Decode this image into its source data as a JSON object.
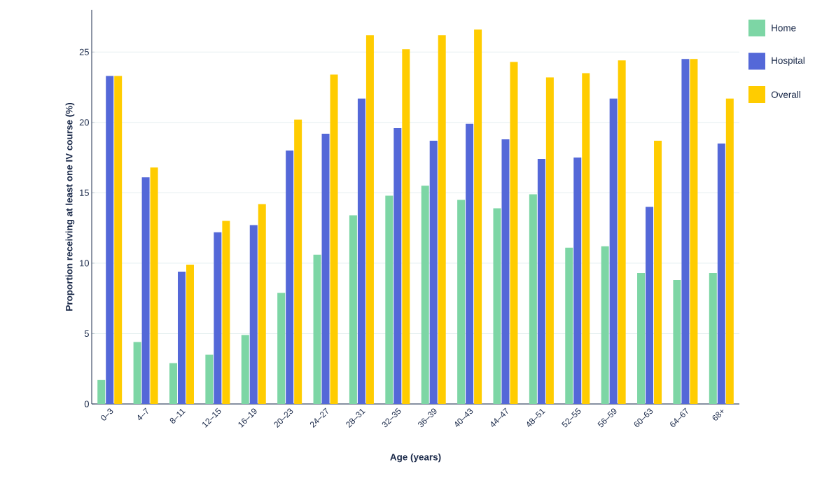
{
  "chart_data": {
    "type": "bar",
    "xlabel": "Age (years)",
    "ylabel": "Proportion receiving at least one IV course (%)",
    "categories": [
      "0–3",
      "4–7",
      "8–11",
      "12–15",
      "16–19",
      "20–23",
      "24–27",
      "28–31",
      "32–35",
      "36–39",
      "40–43",
      "44–47",
      "48–51",
      "52–55",
      "56–59",
      "60–63",
      "64–67",
      "68+"
    ],
    "series": [
      {
        "name": "Home",
        "color": "#7dd6a5",
        "values": [
          1.7,
          4.4,
          2.9,
          3.5,
          4.9,
          7.9,
          10.6,
          13.4,
          14.8,
          15.5,
          14.5,
          13.9,
          14.9,
          11.1,
          11.2,
          9.3,
          8.8,
          9.3
        ]
      },
      {
        "name": "Hospital",
        "color": "#5468d8",
        "values": [
          23.3,
          16.1,
          9.4,
          12.2,
          12.7,
          18.0,
          19.2,
          21.7,
          19.6,
          18.7,
          19.9,
          18.8,
          17.4,
          17.5,
          21.7,
          14.0,
          24.5,
          18.5
        ]
      },
      {
        "name": "Overall",
        "color": "#ffcc00",
        "values": [
          23.3,
          16.8,
          9.9,
          13.0,
          14.2,
          20.2,
          23.4,
          26.2,
          25.2,
          26.2,
          26.6,
          24.3,
          23.2,
          23.5,
          24.4,
          18.7,
          24.5,
          21.7
        ]
      }
    ],
    "ylim": [
      0,
      28
    ],
    "yticks": [
      0,
      5,
      10,
      15,
      20,
      25
    ],
    "grid": "y",
    "legend": "top right"
  }
}
